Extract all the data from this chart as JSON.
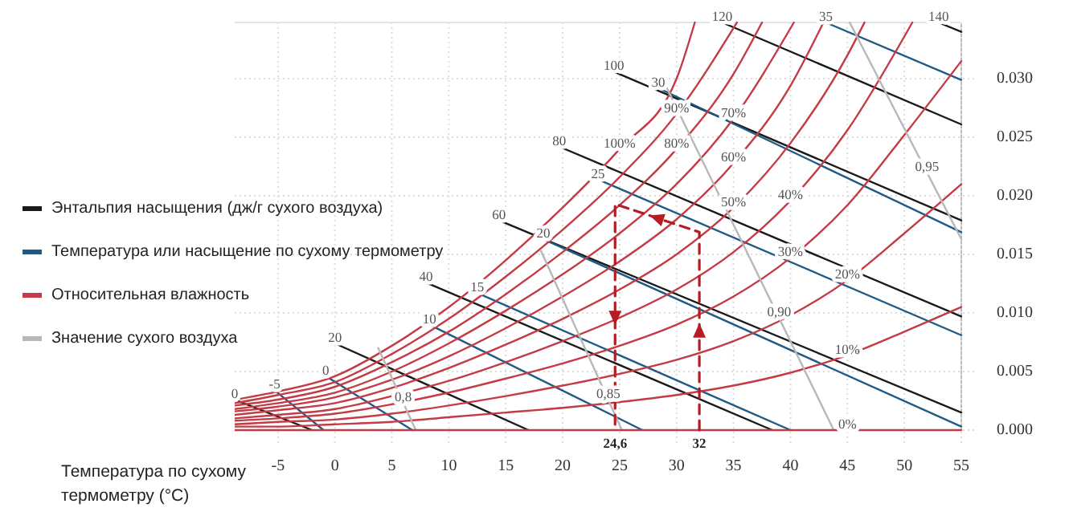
{
  "chart_data": {
    "type": "line",
    "xlabel": "Температура по сухому термометру (°C)",
    "xlim": [
      -8.8,
      55
    ],
    "xticks": [
      -5,
      0,
      5,
      10,
      15,
      20,
      25,
      30,
      35,
      40,
      45,
      50,
      55
    ],
    "ylim": [
      0,
      0.0348
    ],
    "yticks": [
      {
        "value": 0,
        "label": "0.000"
      },
      {
        "value": 0.005,
        "label": "0.005"
      },
      {
        "value": 0.01,
        "label": "0.010"
      },
      {
        "value": 0.015,
        "label": "0.015"
      },
      {
        "value": 0.02,
        "label": "0.020"
      },
      {
        "value": 0.025,
        "label": "0.025"
      },
      {
        "value": 0.03,
        "label": "0.030"
      }
    ],
    "grid": true,
    "legend": "left",
    "series": [
      {
        "name": "Энтальпия насыщения (дж/г сухого воздуха)",
        "color": "#1a1a1a",
        "x": [
          -8.8,
          -2.0
        ],
        "values": [
          0.0026,
          0
        ]
      },
      {
        "color": "#1a1a1a",
        "x": [
          0,
          17.0
        ],
        "values": [
          0.0074,
          0
        ]
      },
      {
        "color": "#1a1a1a",
        "x": [
          8.0,
          38.4
        ],
        "values": [
          0.0126,
          0
        ]
      },
      {
        "color": "#1a1a1a",
        "x": [
          14.4,
          55
        ],
        "values": [
          0.0179,
          0.0015
        ]
      },
      {
        "color": "#1a1a1a",
        "x": [
          19.7,
          55
        ],
        "values": [
          0.0242,
          0.0097
        ]
      },
      {
        "color": "#1a1a1a",
        "x": [
          24.5,
          55
        ],
        "values": [
          0.0306,
          0.0179
        ]
      },
      {
        "color": "#1a1a1a",
        "x": [
          34.0,
          55
        ],
        "values": [
          0.0348,
          0.0261
        ]
      },
      {
        "color": "#1a1a1a",
        "x": [
          53.0,
          55
        ],
        "values": [
          0.0348,
          0.034
        ]
      },
      {
        "name": "Температура или насыщение по сухому термометру",
        "color": "#1f5a85",
        "x": [
          -5.3,
          -1.0
        ],
        "values": [
          0.0034,
          0
        ]
      },
      {
        "color": "#1f5a85",
        "x": [
          -0.8,
          6.8
        ],
        "values": [
          0.0046,
          0
        ]
      },
      {
        "color": "#1f5a85",
        "x": [
          8.3,
          27.0
        ],
        "values": [
          0.009,
          0
        ]
      },
      {
        "color": "#1f5a85",
        "x": [
          12.5,
          40.0
        ],
        "values": [
          0.0117,
          0
        ]
      },
      {
        "color": "#1f5a85",
        "x": [
          18.3,
          55
        ],
        "values": [
          0.0163,
          0.0003
        ]
      },
      {
        "color": "#1f5a85",
        "x": [
          23.1,
          55
        ],
        "values": [
          0.0214,
          0.0081
        ]
      },
      {
        "color": "#1f5a85",
        "x": [
          28.4,
          55
        ],
        "values": [
          0.0292,
          0.0169
        ]
      },
      {
        "color": "#1f5a85",
        "x": [
          43.1,
          55
        ],
        "values": [
          0.0348,
          0.0299
        ]
      },
      {
        "name": "Относительная влажность",
        "color": "#c43a45",
        "x": [
          -8.8,
          -5,
          0,
          5,
          10,
          15,
          20,
          25,
          30,
          31.6
        ],
        "values": [
          0.0026,
          0.0033,
          0.0046,
          0.0072,
          0.0105,
          0.0145,
          0.019,
          0.024,
          0.03,
          0.0348
        ]
      },
      {
        "color": "#c43a45",
        "x": [
          -8.8,
          -5,
          0,
          5,
          10,
          15,
          20,
          25,
          30,
          35.3
        ],
        "values": [
          0.0023,
          0.003,
          0.0041,
          0.0065,
          0.0095,
          0.0131,
          0.0171,
          0.0216,
          0.027,
          0.0348
        ]
      },
      {
        "color": "#c43a45",
        "x": [
          -8.8,
          -5,
          0,
          5,
          10,
          15,
          20,
          25,
          30,
          35,
          37.5
        ],
        "values": [
          0.0021,
          0.0026,
          0.0037,
          0.0058,
          0.0084,
          0.0116,
          0.0152,
          0.0192,
          0.024,
          0.0304,
          0.0348
        ]
      },
      {
        "color": "#c43a45",
        "x": [
          -8.8,
          -5,
          0,
          5,
          10,
          15,
          20,
          25,
          30,
          35,
          40.3
        ],
        "values": [
          0.0018,
          0.0023,
          0.0032,
          0.005,
          0.0074,
          0.0102,
          0.0133,
          0.0168,
          0.021,
          0.0266,
          0.0348
        ]
      },
      {
        "color": "#c43a45",
        "x": [
          -8.8,
          -5,
          0,
          5,
          10,
          15,
          20,
          25,
          30,
          35,
          40,
          42.9
        ],
        "values": [
          0.0016,
          0.002,
          0.0028,
          0.0043,
          0.0063,
          0.0087,
          0.0114,
          0.0144,
          0.018,
          0.0228,
          0.0294,
          0.0348
        ]
      },
      {
        "color": "#c43a45",
        "x": [
          -8.8,
          -5,
          0,
          5,
          10,
          15,
          20,
          25,
          30,
          35,
          40,
          45,
          46.5
        ],
        "values": [
          0.0013,
          0.0017,
          0.0023,
          0.0036,
          0.0053,
          0.0073,
          0.0095,
          0.012,
          0.015,
          0.019,
          0.0245,
          0.032,
          0.0348
        ]
      },
      {
        "color": "#c43a45",
        "x": [
          -8.8,
          -5,
          0,
          5,
          10,
          15,
          20,
          25,
          30,
          35,
          40,
          45,
          50,
          50.7
        ],
        "values": [
          0.001,
          0.0013,
          0.0018,
          0.0029,
          0.0042,
          0.0058,
          0.0076,
          0.0096,
          0.012,
          0.0152,
          0.0196,
          0.0256,
          0.0336,
          0.0348
        ]
      },
      {
        "color": "#c43a45",
        "x": [
          -8.8,
          -5,
          0,
          5,
          10,
          15,
          20,
          25,
          30,
          35,
          40,
          45,
          50,
          55
        ],
        "values": [
          0.0008,
          0.001,
          0.0014,
          0.0022,
          0.0032,
          0.0044,
          0.0057,
          0.0072,
          0.009,
          0.0114,
          0.0147,
          0.0192,
          0.0252,
          0.0315
        ]
      },
      {
        "color": "#c43a45",
        "x": [
          -8.8,
          -5,
          0,
          5,
          10,
          15,
          20,
          25,
          30,
          35,
          40,
          45,
          50,
          55
        ],
        "values": [
          0.0005,
          0.0007,
          0.0009,
          0.0014,
          0.0021,
          0.0029,
          0.0038,
          0.0048,
          0.006,
          0.0076,
          0.0098,
          0.0128,
          0.0168,
          0.021
        ]
      },
      {
        "color": "#c43a45",
        "x": [
          -8.8,
          -5,
          0,
          5,
          10,
          15,
          20,
          25,
          30,
          35,
          40,
          45,
          50,
          55
        ],
        "values": [
          0.0003,
          0.0003,
          0.0005,
          0.0007,
          0.0011,
          0.0015,
          0.0019,
          0.0024,
          0.003,
          0.0038,
          0.0049,
          0.0064,
          0.0084,
          0.0105
        ]
      },
      {
        "name": "Значение сухого воздуха",
        "color": "#b8b8b8",
        "x": [
          3.8,
          7.1
        ],
        "values": [
          0.007,
          0
        ]
      },
      {
        "color": "#b8b8b8",
        "x": [
          18.1,
          25.2
        ],
        "values": [
          0.0153,
          0
        ]
      },
      {
        "color": "#b8b8b8",
        "x": [
          28.8,
          43.8
        ],
        "values": [
          0.0299,
          0
        ]
      },
      {
        "color": "#b8b8b8",
        "x": [
          45.2,
          55
        ],
        "values": [
          0.0348,
          0.0163
        ]
      },
      {
        "color": "#c43a45",
        "x": [
          -8.8,
          55
        ],
        "values": [
          0,
          0
        ]
      },
      {
        "color": "#b51c24",
        "line_style": "dashed",
        "x": [
          32,
          32,
          24.6,
          24.6
        ],
        "values": [
          0,
          0.0169,
          0.0193,
          0
        ]
      }
    ],
    "annotations": [
      {
        "text": "0",
        "x": -8.8,
        "y": 0.0026
      },
      {
        "text": "20",
        "x": 0,
        "y": 0.0074
      },
      {
        "text": "40",
        "x": 8.0,
        "y": 0.0126
      },
      {
        "text": "60",
        "x": 14.4,
        "y": 0.0179
      },
      {
        "text": "80",
        "x": 19.7,
        "y": 0.0242
      },
      {
        "text": "100",
        "x": 24.5,
        "y": 0.0306
      },
      {
        "text": "120",
        "x": 34.0,
        "y": 0.0348
      },
      {
        "text": "140",
        "x": 53.0,
        "y": 0.0348
      },
      {
        "text": "-5",
        "x": -5.3,
        "y": 0.0034
      },
      {
        "text": "0",
        "x": -0.8,
        "y": 0.0046
      },
      {
        "text": "10",
        "x": 8.3,
        "y": 0.009
      },
      {
        "text": "15",
        "x": 12.5,
        "y": 0.0117
      },
      {
        "text": "20",
        "x": 18.3,
        "y": 0.0163
      },
      {
        "text": "25",
        "x": 23.1,
        "y": 0.0214
      },
      {
        "text": "30",
        "x": 28.4,
        "y": 0.0292
      },
      {
        "text": "35",
        "x": 43.1,
        "y": 0.0348
      },
      {
        "text": "100%",
        "x": 25,
        "y": 0.024
      },
      {
        "text": "90%",
        "x": 30,
        "y": 0.027
      },
      {
        "text": "80%",
        "x": 30,
        "y": 0.024
      },
      {
        "text": "70%",
        "x": 35,
        "y": 0.0266
      },
      {
        "text": "60%",
        "x": 35,
        "y": 0.0228
      },
      {
        "text": "50%",
        "x": 35,
        "y": 0.019
      },
      {
        "text": "40%",
        "x": 40,
        "y": 0.0196
      },
      {
        "text": "30%",
        "x": 40,
        "y": 0.0147
      },
      {
        "text": "20%",
        "x": 45,
        "y": 0.0128
      },
      {
        "text": "10%",
        "x": 45,
        "y": 0.0064
      },
      {
        "text": "0%",
        "x": 45,
        "y": 0
      },
      {
        "text": "0,8",
        "x": 6.0,
        "y": 0.0023
      },
      {
        "text": "0,85",
        "x": 24,
        "y": 0.0026
      },
      {
        "text": "0,90",
        "x": 39,
        "y": 0.0096
      },
      {
        "text": "0,95",
        "x": 52,
        "y": 0.022
      },
      {
        "text": "24,6",
        "x": 24.6,
        "y": 0
      },
      {
        "text": "32",
        "x": 32,
        "y": 0
      }
    ]
  }
}
